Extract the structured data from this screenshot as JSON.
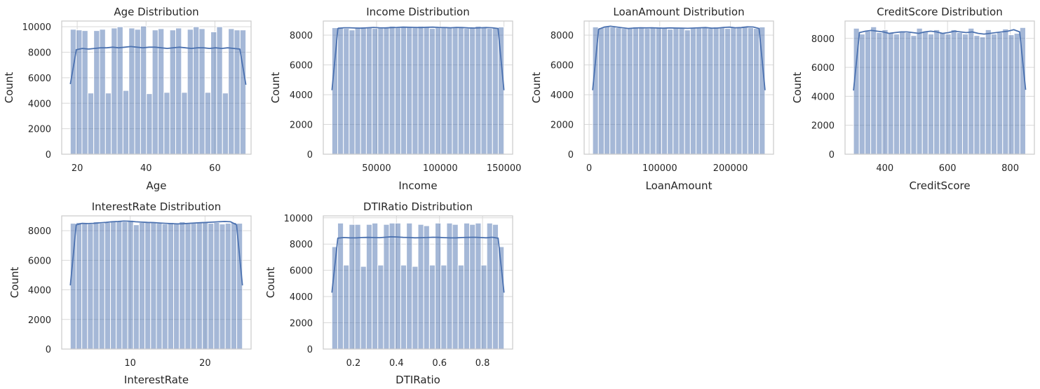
{
  "chart_data": [
    {
      "type": "bar",
      "title": "Age Distribution",
      "xlabel": "Age",
      "ylabel": "Count",
      "xlim": [
        15.5,
        70.5
      ],
      "ylim": [
        0,
        10450
      ],
      "grid": true,
      "xticks": [
        20,
        40,
        60
      ],
      "yticks": [
        0,
        2000,
        4000,
        6000,
        8000,
        10000
      ],
      "bin_start": 18,
      "bin_end": 69,
      "values": [
        9800,
        9750,
        9700,
        4800,
        9700,
        9800,
        4800,
        9900,
        10000,
        5000,
        9900,
        9800,
        10050,
        4750,
        9750,
        9850,
        4850,
        9750,
        9900,
        4850,
        9800,
        10000,
        9850,
        4850,
        9600,
        10000,
        4800,
        9850,
        9750,
        9750
      ],
      "kde": [
        5500,
        8200,
        8300,
        8250,
        8300,
        8350,
        8350,
        8400,
        8350,
        8400,
        8450,
        8400,
        8350,
        8400,
        8400,
        8350,
        8300,
        8350,
        8400,
        8350,
        8300,
        8350,
        8350,
        8300,
        8350,
        8300,
        8350,
        8300,
        8250,
        5450
      ]
    },
    {
      "type": "bar",
      "title": "Income Distribution",
      "xlabel": "Income",
      "ylabel": "Count",
      "xlim": [
        8200,
        156800
      ],
      "ylim": [
        0,
        8950
      ],
      "grid": true,
      "xticks": [
        50000,
        100000,
        150000
      ],
      "yticks": [
        0,
        2000,
        4000,
        6000,
        8000
      ],
      "bin_start": 15000,
      "bin_end": 150000,
      "values": [
        8500,
        8550,
        8450,
        8350,
        8500,
        8550,
        8500,
        8450,
        8500,
        8550,
        8600,
        8500,
        8550,
        8550,
        8500,
        8600,
        8550,
        8450,
        8500,
        8500,
        8550,
        8500,
        8550,
        8450,
        8500,
        8600,
        8500,
        8450,
        8500,
        8550
      ],
      "kde": [
        4300,
        8450,
        8500,
        8500,
        8480,
        8470,
        8500,
        8520,
        8500,
        8490,
        8510,
        8520,
        8540,
        8530,
        8520,
        8510,
        8530,
        8540,
        8520,
        8510,
        8500,
        8520,
        8510,
        8490,
        8480,
        8500,
        8510,
        8500,
        8450,
        4300
      ]
    },
    {
      "type": "bar",
      "title": "LoanAmount Distribution",
      "xlabel": "LoanAmount",
      "ylabel": "Count",
      "xlim": [
        -7000,
        261000
      ],
      "ylim": [
        0,
        8950
      ],
      "grid": true,
      "xticks": [
        0,
        100000,
        200000
      ],
      "yticks": [
        0,
        2000,
        4000,
        6000,
        8000
      ],
      "bin_start": 5000,
      "bin_end": 249000,
      "values": [
        8550,
        8500,
        8600,
        8550,
        8500,
        8450,
        8500,
        8550,
        8500,
        8450,
        8500,
        8550,
        8500,
        8400,
        8500,
        8450,
        8350,
        8500,
        8550,
        8500,
        8450,
        8550,
        8500,
        8450,
        8500,
        8550,
        8600,
        8500,
        8450,
        8550
      ],
      "kde": [
        4300,
        8400,
        8550,
        8600,
        8550,
        8500,
        8450,
        8480,
        8500,
        8490,
        8500,
        8480,
        8470,
        8490,
        8480,
        8470,
        8460,
        8480,
        8500,
        8510,
        8470,
        8480,
        8520,
        8540,
        8500,
        8510,
        8560,
        8550,
        8450,
        4300
      ]
    },
    {
      "type": "bar",
      "title": "CreditScore Distribution",
      "xlabel": "CreditScore",
      "ylabel": "Count",
      "xlim": [
        273,
        877
      ],
      "ylim": [
        0,
        9200
      ],
      "grid": true,
      "xticks": [
        400,
        600,
        800
      ],
      "yticks": [
        0,
        2000,
        4000,
        6000,
        8000
      ],
      "bin_start": 300,
      "bin_end": 849,
      "values": [
        8700,
        8300,
        8500,
        8800,
        8400,
        8600,
        8400,
        8300,
        8500,
        8400,
        8200,
        8700,
        8500,
        8300,
        8600,
        8400,
        8300,
        8600,
        8400,
        8300,
        8700,
        8200,
        8100,
        8600,
        8300,
        8400,
        8650,
        8250,
        8350,
        8750
      ],
      "kde": [
        4400,
        8400,
        8500,
        8550,
        8500,
        8450,
        8350,
        8400,
        8450,
        8450,
        8400,
        8350,
        8450,
        8500,
        8450,
        8350,
        8400,
        8500,
        8450,
        8400,
        8450,
        8350,
        8300,
        8350,
        8400,
        8450,
        8500,
        8600,
        8450,
        4450
      ]
    },
    {
      "type": "bar",
      "title": "InterestRate Distribution",
      "xlabel": "InterestRate",
      "ylabel": "Count",
      "xlim": [
        0.85,
        26.15
      ],
      "ylim": [
        0,
        9000
      ],
      "grid": true,
      "xticks": [
        10,
        20
      ],
      "yticks": [
        0,
        2000,
        4000,
        6000,
        8000
      ],
      "bin_start": 2,
      "bin_end": 25,
      "values": [
        8500,
        8550,
        8500,
        8450,
        8600,
        8500,
        8550,
        8600,
        8650,
        8600,
        8700,
        8400,
        8550,
        8600,
        8550,
        8500,
        8450,
        8550,
        8500,
        8600,
        8550,
        8500,
        8550,
        8600,
        8500,
        8550,
        8450,
        8500,
        8550,
        8500
      ],
      "kde": [
        4300,
        8400,
        8500,
        8480,
        8500,
        8530,
        8560,
        8600,
        8620,
        8650,
        8640,
        8600,
        8580,
        8560,
        8550,
        8520,
        8500,
        8480,
        8460,
        8470,
        8500,
        8520,
        8540,
        8560,
        8580,
        8600,
        8620,
        8600,
        8400,
        4300
      ]
    },
    {
      "type": "bar",
      "title": "DTIRatio Distribution",
      "xlabel": "DTIRatio",
      "ylabel": "Count",
      "xlim": [
        0.06,
        0.94
      ],
      "ylim": [
        0,
        10150
      ],
      "grid": true,
      "xticks": [
        0.2,
        0.4,
        0.6,
        0.8
      ],
      "yticks": [
        0,
        2000,
        4000,
        6000,
        8000,
        10000
      ],
      "bin_start": 0.1,
      "bin_end": 0.9,
      "values": [
        7800,
        9600,
        6400,
        9500,
        9500,
        6300,
        9500,
        9600,
        6400,
        9500,
        9600,
        9600,
        6400,
        9600,
        6300,
        9500,
        9400,
        6400,
        9600,
        6400,
        9600,
        9500,
        6400,
        9600,
        9500,
        9600,
        6400,
        9600,
        9500,
        7800
      ],
      "kde": [
        4300,
        8450,
        8500,
        8480,
        8470,
        8500,
        8510,
        8500,
        8490,
        8520,
        8560,
        8540,
        8510,
        8500,
        8480,
        8490,
        8500,
        8520,
        8510,
        8490,
        8470,
        8480,
        8500,
        8510,
        8520,
        8500,
        8480,
        8520,
        8450,
        4300
      ]
    }
  ]
}
